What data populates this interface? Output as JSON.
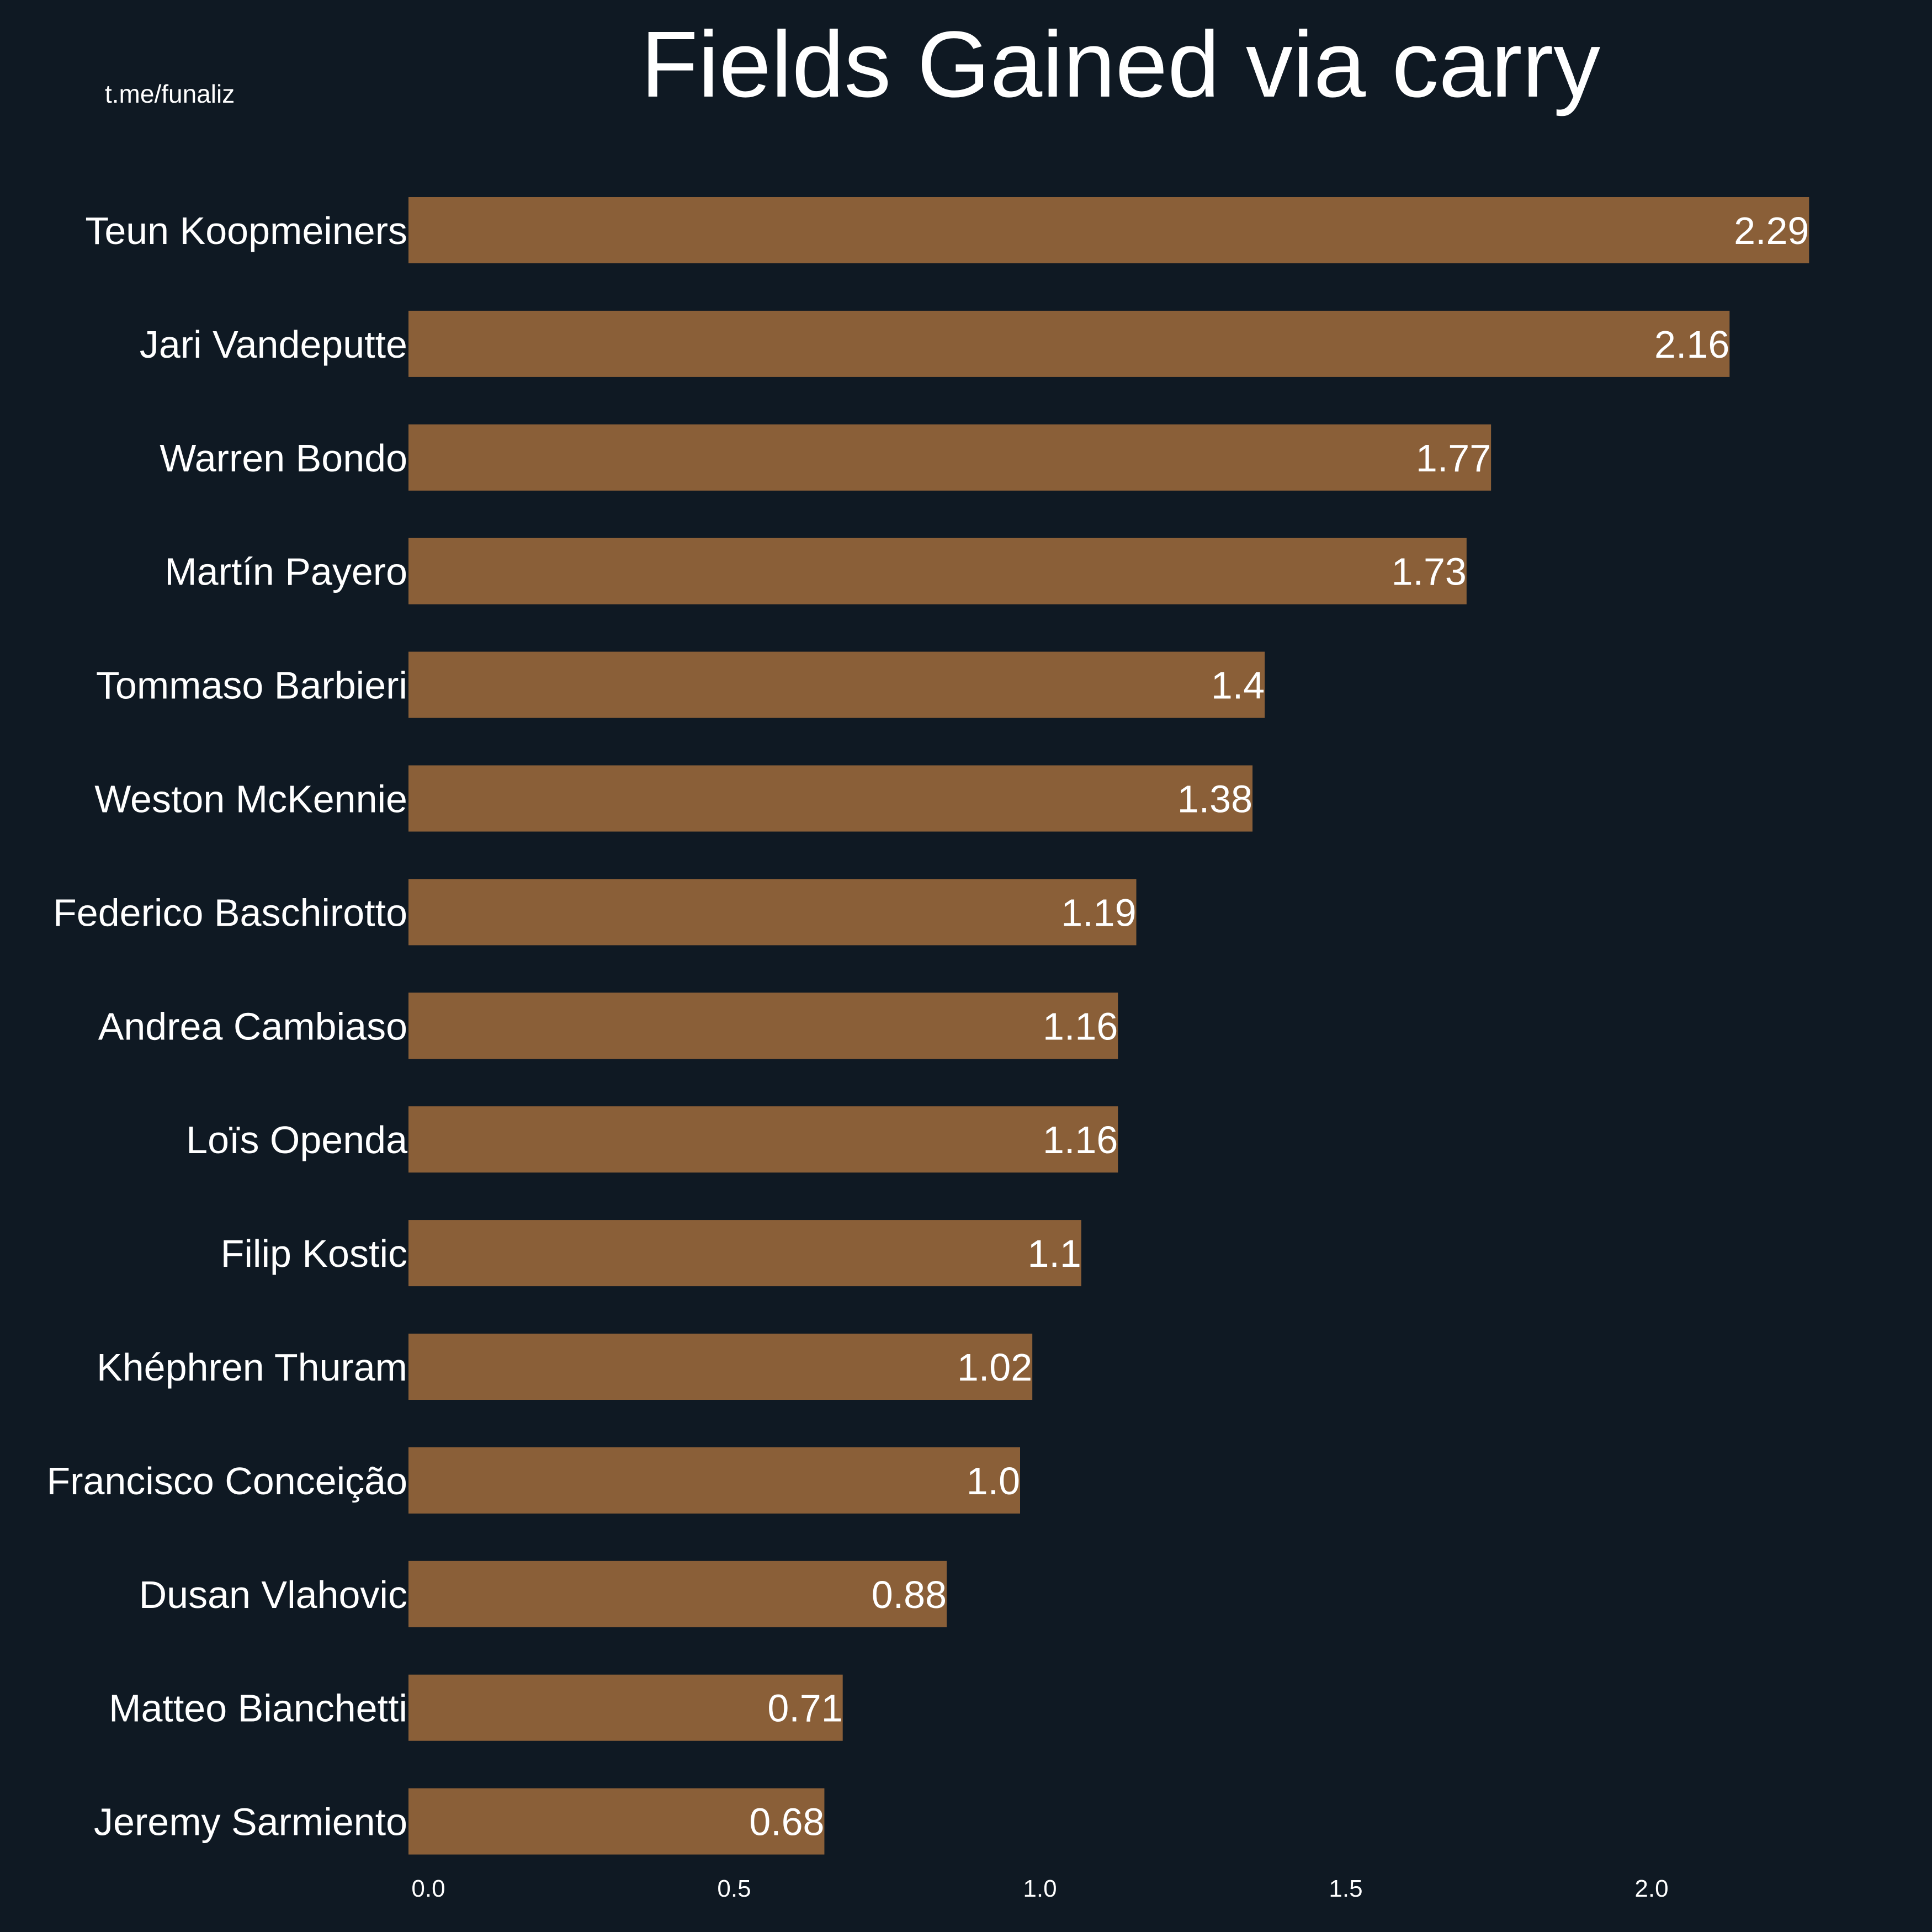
{
  "watermark": "t.me/funaliz",
  "colors": {
    "background": "#0f1923",
    "bar": "#8a5f38",
    "text": "#ffffff"
  },
  "chart_data": {
    "type": "bar",
    "orientation": "horizontal",
    "title": "Fields Gained via carry",
    "xlabel": "",
    "ylabel": "",
    "grid": false,
    "legend": "none",
    "xlim": [
      0,
      2.33
    ],
    "xticks": [
      0.0,
      0.5,
      1.0,
      1.5,
      2.0
    ],
    "xtick_labels": [
      "0.0",
      "0.5",
      "1.0",
      "1.5",
      "2.0"
    ],
    "categories": [
      "Teun Koopmeiners",
      "Jari Vandeputte",
      "Warren Bondo",
      "Martín Payero",
      "Tommaso Barbieri",
      "Weston McKennie",
      "Federico Baschirotto",
      "Andrea Cambiaso",
      "Loïs Openda",
      "Filip Kostic",
      "Khéphren Thuram",
      "Francisco Conceição",
      "Dusan Vlahovic",
      "Matteo Bianchetti",
      "Jeremy Sarmiento"
    ],
    "values": [
      2.29,
      2.16,
      1.77,
      1.73,
      1.4,
      1.38,
      1.19,
      1.16,
      1.16,
      1.1,
      1.02,
      1.0,
      0.88,
      0.71,
      0.68
    ],
    "value_labels": [
      "2.29",
      "2.16",
      "1.77",
      "1.73",
      "1.4",
      "1.38",
      "1.19",
      "1.16",
      "1.16",
      "1.1",
      "1.02",
      "1.0",
      "0.88",
      "0.71",
      "0.68"
    ]
  }
}
